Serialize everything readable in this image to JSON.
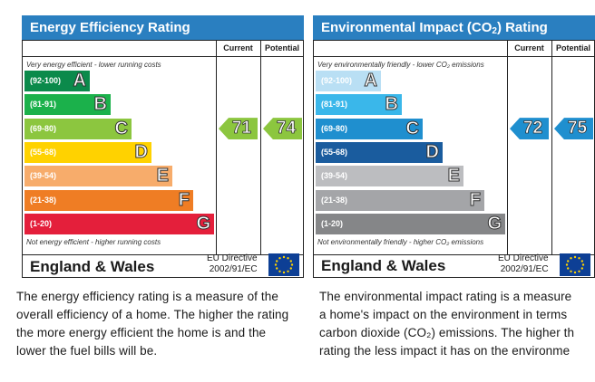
{
  "charts_common": {
    "col_current": "Current",
    "col_potential": "Potential",
    "region": "England & Wales",
    "directive_line1": "EU Directive",
    "directive_line2": "2002/91/EC"
  },
  "chart_data": [
    {
      "type": "bar",
      "title": "Energy Efficiency Rating",
      "top_caption": "Very energy efficient - lower running costs",
      "bottom_caption": "Not energy efficient - higher running costs",
      "categories": [
        "A",
        "B",
        "C",
        "D",
        "E",
        "F",
        "G"
      ],
      "ranges": [
        "(92-100)",
        "(81-91)",
        "(69-80)",
        "(55-68)",
        "(39-54)",
        "(21-38)",
        "(1-20)"
      ],
      "colors": [
        "#0b8a4b",
        "#1bb14b",
        "#8cc63f",
        "#ffd200",
        "#f7ac6b",
        "#ef7d24",
        "#e41f3b"
      ],
      "current": 71,
      "potential": 74,
      "current_band": "C",
      "potential_band": "C",
      "arrow_color": "#8cc63f"
    },
    {
      "type": "bar",
      "title": "Environmental Impact (CO₂) Rating",
      "top_caption": "Very environmentally friendly - lower CO₂ emissions",
      "bottom_caption": "Not environmentally friendly - higher CO₂ emissions",
      "categories": [
        "A",
        "B",
        "C",
        "D",
        "E",
        "F",
        "G"
      ],
      "ranges": [
        "(92-100)",
        "(81-91)",
        "(69-80)",
        "(55-68)",
        "(39-54)",
        "(21-38)",
        "(1-20)"
      ],
      "colors": [
        "#b9dff4",
        "#3ab7ea",
        "#1f8fcf",
        "#1a5c9e",
        "#bcbdc0",
        "#a4a5a8",
        "#858688"
      ],
      "current": 72,
      "potential": 75,
      "current_band": "C",
      "potential_band": "C",
      "arrow_color": "#1f8fcf"
    }
  ],
  "descriptions": {
    "energy": [
      "The energy efficiency rating is a measure of the",
      "overall efficiency of a home. The higher the rating",
      "the more energy efficient the home is and the",
      "lower the fuel bills will be."
    ],
    "environment": [
      "The environmental impact rating is a measure",
      "a home's impact on the environment in terms",
      "carbon dioxide (CO₂) emissions. The higher th",
      "rating the less impact it has on the environme"
    ]
  }
}
